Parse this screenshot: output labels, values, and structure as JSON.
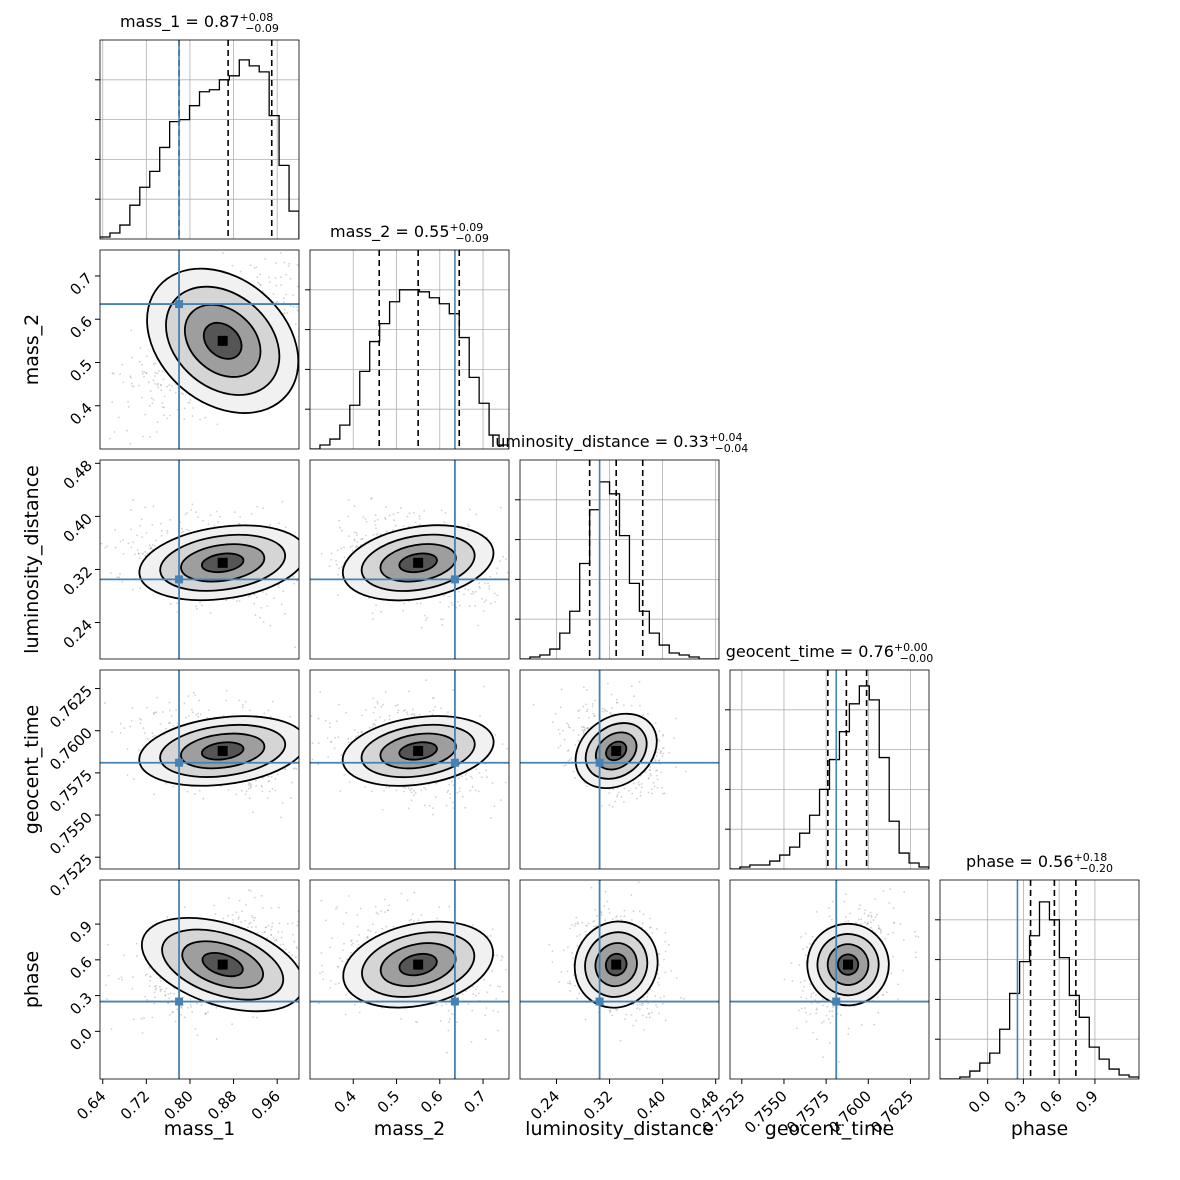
{
  "chart_data": {
    "type": "corner",
    "params": [
      {
        "name": "mass_1",
        "range": [
          0.635,
          1.0
        ],
        "ticks": [
          0.64,
          0.72,
          0.8,
          0.88,
          0.96
        ],
        "tick_labels": [
          "0.64",
          "0.72",
          "0.80",
          "0.88",
          "0.96"
        ],
        "truth": 0.78,
        "quantiles": [
          0.78,
          0.87,
          0.95
        ],
        "title_lhs": "mass_1 = 0.87",
        "title_sup": "+0.08",
        "title_sub": "−0.09",
        "center": [
          0.86,
          0.59
        ],
        "std": [
          0.07,
          0.09
        ],
        "rho": -0.6
      },
      {
        "name": "mass_2",
        "range": [
          0.3,
          0.76
        ],
        "ticks": [
          0.4,
          0.5,
          0.6,
          0.7
        ],
        "tick_labels": [
          "0.4",
          "0.5",
          "0.6",
          "0.7"
        ],
        "truth": 0.635,
        "quantiles": [
          0.46,
          0.55,
          0.645
        ],
        "title_lhs": "mass_2 = 0.55",
        "title_sup": "+0.09",
        "title_sub": "−0.09",
        "center": [
          0.55,
          0.33
        ],
        "std": [
          0.08,
          0.035
        ],
        "rho": 0.3
      },
      {
        "name": "luminosity_distance",
        "range": [
          0.185,
          0.485
        ],
        "ticks": [
          0.24,
          0.32,
          0.4,
          0.48
        ],
        "tick_labels": [
          "0.24",
          "0.32",
          "0.40",
          "0.48"
        ],
        "truth": 0.305,
        "quantiles": [
          0.29,
          0.33,
          0.37
        ],
        "title_lhs": "luminosity_distance = 0.33",
        "title_sup": "+0.04",
        "title_sub": "−0.04",
        "center": [
          0.33,
          0.7585
        ],
        "std": [
          0.03,
          0.0011
        ],
        "rho": 0.1
      },
      {
        "name": "geocent_time",
        "range": [
          0.7518,
          0.7636
        ],
        "ticks": [
          0.7525,
          0.755,
          0.7575,
          0.76,
          0.7625
        ],
        "tick_labels": [
          "0.7525",
          "0.7550",
          "0.7575",
          "0.7600",
          "0.7625"
        ],
        "truth": 0.7581,
        "quantiles": [
          0.7576,
          0.7587,
          0.7599
        ],
        "title_lhs": "geocent_time = 0.76",
        "title_sup": "+0.00",
        "title_sub": "−0.00",
        "center": [
          0.7588,
          0.57
        ],
        "std": [
          0.0011,
          0.14
        ],
        "rho": -0.25
      },
      {
        "name": "phase",
        "range": [
          -0.4,
          1.27
        ],
        "ticks": [
          0.0,
          0.3,
          0.6,
          0.9
        ],
        "tick_labels": [
          "0.0",
          "0.3",
          "0.6",
          "0.9"
        ],
        "truth": 0.25,
        "quantiles": [
          0.36,
          0.56,
          0.74
        ],
        "title_lhs": "phase = 0.56",
        "title_sup": "+0.18",
        "title_sub": "−0.20",
        "center": [
          0.56,
          0.0
        ],
        "std": [
          0.19,
          0.1
        ],
        "rho": 0.0
      }
    ],
    "histograms": [
      [
        0.01,
        0.03,
        0.07,
        0.17,
        0.26,
        0.34,
        0.46,
        0.59,
        0.6,
        0.67,
        0.74,
        0.75,
        0.8,
        0.82,
        0.9,
        0.87,
        0.84,
        0.62,
        0.37,
        0.14
      ],
      [
        0.0,
        0.02,
        0.05,
        0.12,
        0.22,
        0.39,
        0.54,
        0.63,
        0.74,
        0.8,
        0.8,
        0.79,
        0.76,
        0.73,
        0.68,
        0.56,
        0.36,
        0.23,
        0.07,
        0.02
      ],
      [
        0.0,
        0.01,
        0.02,
        0.05,
        0.13,
        0.24,
        0.48,
        0.75,
        0.89,
        0.83,
        0.62,
        0.38,
        0.24,
        0.13,
        0.07,
        0.03,
        0.02,
        0.01,
        0.0,
        0.0
      ],
      [
        0.0,
        0.01,
        0.02,
        0.02,
        0.04,
        0.07,
        0.11,
        0.18,
        0.27,
        0.4,
        0.55,
        0.69,
        0.83,
        0.92,
        0.85,
        0.56,
        0.24,
        0.08,
        0.03,
        0.01
      ],
      [
        0.0,
        0.0,
        0.01,
        0.04,
        0.08,
        0.13,
        0.25,
        0.43,
        0.59,
        0.72,
        0.89,
        0.8,
        0.61,
        0.42,
        0.31,
        0.16,
        0.1,
        0.05,
        0.02,
        0.01
      ]
    ],
    "colors": {
      "truth": "#4682b4",
      "hist": "#000000",
      "grid": "#b0b0b0",
      "points": "#9a9a9a"
    },
    "grid": true,
    "contours": true
  }
}
